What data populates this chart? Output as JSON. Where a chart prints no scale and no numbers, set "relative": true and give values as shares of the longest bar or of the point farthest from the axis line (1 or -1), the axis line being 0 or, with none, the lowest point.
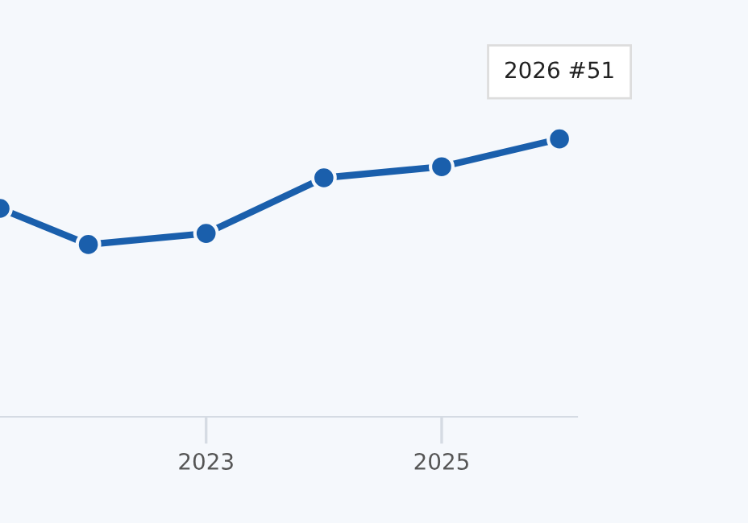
{
  "chart_data": {
    "type": "line",
    "relative": true,
    "marker": "circle",
    "line_style": "solid",
    "x": [
      2021.25,
      2022,
      2023,
      2024,
      2025,
      2026
    ],
    "series": [
      {
        "color": "#1a5fac",
        "values": [
          0.75,
          0.62,
          0.66,
          0.86,
          0.9,
          1.0
        ]
      }
    ],
    "xlim": [
      2021.25,
      2026.15
    ],
    "xticks": [
      2023,
      2025
    ],
    "grid": false,
    "legend": false,
    "annotations": [
      {
        "text": "2026 #51",
        "x": 2026,
        "y": 1.0
      }
    ]
  }
}
